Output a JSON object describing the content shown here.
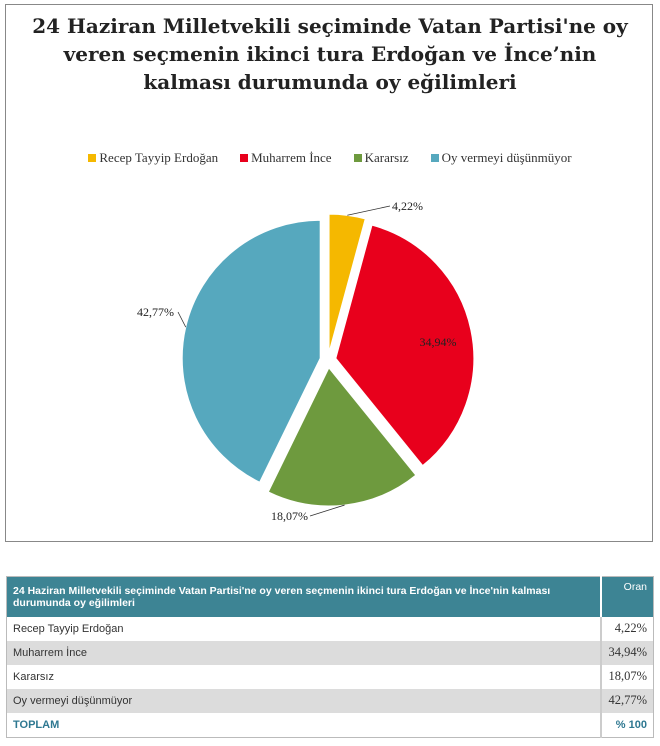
{
  "chart_data": {
    "type": "pie",
    "title": "24 Haziran Milletvekili seçiminde Vatan Partisi'ne oy veren seçmenin ikinci tura Erdoğan ve İnce’nin kalması durumunda oy eğilimleri",
    "legend_position": "top",
    "slices": [
      {
        "label": "Recep Tayyip Erdoğan",
        "value": 4.22,
        "display": "4,22%",
        "color": "#f5b800"
      },
      {
        "label": "Muharrem İnce",
        "value": 34.94,
        "display": "34,94%",
        "color": "#e8001c"
      },
      {
        "label": "Kararsız",
        "value": 18.07,
        "display": "18,07%",
        "color": "#6e9a3e"
      },
      {
        "label": "Oy vermeyi düşünmüyor",
        "value": 42.77,
        "display": "42,77%",
        "color": "#56a8be"
      }
    ]
  },
  "table": {
    "header": "24 Haziran Milletvekili seçiminde Vatan Partisi'ne oy veren seçmenin ikinci tura Erdoğan ve İnce'nin kalması durumunda oy eğilimleri",
    "col": "Oran",
    "rows": [
      {
        "label": "Recep Tayyip Erdoğan",
        "value": "4,22%"
      },
      {
        "label": "Muharrem İnce",
        "value": "34,94%"
      },
      {
        "label": "Kararsız",
        "value": "18,07%"
      },
      {
        "label": "Oy vermeyi düşünmüyor",
        "value": "42,77%"
      }
    ],
    "total_label": "TOPLAM",
    "total_value": "% 100"
  }
}
